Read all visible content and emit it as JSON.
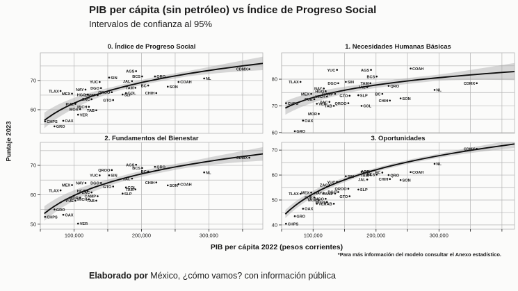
{
  "chart_data": {
    "type": "scatter",
    "title": "PIB per cápita (sin petróleo) vs Índice de Progreso Social",
    "subtitle": "Intervalos de confianza al 95%",
    "xlabel": "PIB per cápita 2022 (pesos corrientes)",
    "ylabel": "Puntaje 2023",
    "footnote": "*Para más información del modelo consultar el Anexo estadístico.",
    "footer_bold": "Elaborado por",
    "footer_rest": " México, ¿cómo vamos? con información pública",
    "grid": true,
    "legend": "none",
    "xticks": [
      100000,
      200000,
      300000
    ],
    "xgrid_step": 50000,
    "colors": {
      "curve": "#0d0d0d",
      "band": "#9a9a9a",
      "gridline": "#b3b3b3",
      "point": "#111111",
      "text": "#1a1a1a"
    },
    "panels": [
      {
        "key": "ips",
        "title": "0. Índice de Progreso Social",
        "ylim": [
          51.9,
          79.5
        ],
        "yticks": [
          70,
          60
        ],
        "ygrid": [
          55,
          60,
          65,
          70,
          75
        ],
        "curve": {
          "x": [
            57000,
            360000
          ],
          "y": [
            56.5,
            75.3
          ]
        },
        "band": {
          "left": 2.8,
          "mid": 0.9,
          "right": 2.3
        }
      },
      {
        "key": "nbh",
        "title": "1. Necesidades Humanas Básicas",
        "ylim": [
          59.7,
          89.9
        ],
        "yticks": [
          80,
          70,
          60
        ],
        "ygrid": [
          60,
          65,
          70,
          75,
          80,
          85
        ],
        "curve": {
          "x": [
            57000,
            360000
          ],
          "y": [
            69.3,
            81.8
          ]
        },
        "band": {
          "left": 2.6,
          "mid": 1.1,
          "right": 3.2
        }
      },
      {
        "key": "fb",
        "title": "2. Fundamentos del Bienestar",
        "ylim": [
          48.3,
          77.8
        ],
        "yticks": [
          70,
          60,
          50
        ],
        "ygrid": [
          50,
          55,
          60,
          65,
          70,
          75
        ],
        "curve": {
          "x": [
            57000,
            360000
          ],
          "y": [
            53.8,
            73.3
          ]
        },
        "band": {
          "left": 2.6,
          "mid": 1.0,
          "right": 2.3
        }
      },
      {
        "key": "op",
        "title": "3. Oportunidades",
        "ylim": [
          38.3,
          73.1
        ],
        "yticks": [
          70,
          60,
          50,
          40
        ],
        "ygrid": [
          40,
          45,
          50,
          55,
          60,
          65,
          70
        ],
        "curve": {
          "x": [
            57000,
            360000
          ],
          "y": [
            44.6,
            70.3
          ]
        },
        "band": {
          "left": 1.7,
          "mid": 0.8,
          "right": 1.6
        }
      }
    ],
    "states": [
      {
        "label": "CHPS",
        "pib": 57000,
        "ips": 56.0,
        "nbh": 71.0,
        "fb": 52.5,
        "op": 40.5,
        "side": "r"
      },
      {
        "label": "GRO",
        "pib": 71000,
        "ips": 54.3,
        "nbh": 60.5,
        "fb": 55.0,
        "op": 43.5,
        "side": "r"
      },
      {
        "label": "OAX",
        "pib": 84000,
        "ips": 56.2,
        "nbh": 64.5,
        "fb": 53.2,
        "op": 46.5,
        "side": "r"
      },
      {
        "label": "TLAX",
        "pib": 80000,
        "ips": 66.4,
        "nbh": 79.0,
        "fb": 61.5,
        "op": 52.5,
        "side": "l"
      },
      {
        "label": "MEX",
        "pib": 97000,
        "ips": 65.5,
        "nbh": 74.5,
        "fb": 63.3,
        "op": 53.0,
        "side": "l"
      },
      {
        "label": "PUE",
        "pib": 102000,
        "ips": 62.0,
        "nbh": 72.5,
        "fb": 58.0,
        "op": 51.0,
        "side": "l"
      },
      {
        "label": "VER",
        "pib": 106000,
        "ips": 58.3,
        "nbh": 70.8,
        "fb": 50.2,
        "op": 48.5,
        "side": "r"
      },
      {
        "label": "MOR",
        "pib": 109000,
        "ips": 60.2,
        "nbh": 67.0,
        "fb": 59.0,
        "op": 50.0,
        "side": "l"
      },
      {
        "label": "NAY",
        "pib": 117000,
        "ips": 66.9,
        "nbh": 76.5,
        "fb": 64.0,
        "op": 52.8,
        "side": "l"
      },
      {
        "label": "HGO",
        "pib": 120000,
        "ips": 65.2,
        "nbh": 75.5,
        "fb": 61.3,
        "op": 50.5,
        "side": "l"
      },
      {
        "label": "MICH",
        "pib": 122000,
        "ips": 61.0,
        "nbh": 73.5,
        "fb": 58.5,
        "op": 49.2,
        "side": "l"
      },
      {
        "label": "ZAC",
        "pib": 126000,
        "ips": 63.6,
        "nbh": 71.5,
        "fb": 60.8,
        "op": 56.0,
        "side": "l"
      },
      {
        "label": "TAB",
        "pib": 133000,
        "ips": 59.8,
        "nbh": 70.0,
        "fb": 58.0,
        "op": 48.5,
        "side": "l"
      },
      {
        "label": "CAMP",
        "pib": 135000,
        "ips": 65.0,
        "nbh": 74.5,
        "fb": 59.5,
        "op": 52.6,
        "side": "l"
      },
      {
        "label": "YUC",
        "pib": 138000,
        "ips": 69.5,
        "nbh": 83.5,
        "fb": 66.6,
        "op": 57.2,
        "side": "l"
      },
      {
        "label": "DGO",
        "pib": 140000,
        "ips": 67.4,
        "nbh": 78.5,
        "fb": 64.0,
        "op": 53.2,
        "side": "l"
      },
      {
        "label": "SIN",
        "pib": 152000,
        "ips": 71.0,
        "nbh": 79.0,
        "fb": 66.6,
        "op": 59.5,
        "side": "r"
      },
      {
        "label": "QROO",
        "pib": 156000,
        "ips": 66.0,
        "nbh": 71.0,
        "fb": 68.4,
        "op": 54.5,
        "side": "l"
      },
      {
        "label": "GTO",
        "pib": 158000,
        "ips": 63.3,
        "nbh": 73.8,
        "fb": 62.8,
        "op": 51.5,
        "side": "l"
      },
      {
        "label": "SLP",
        "pib": 172000,
        "ips": 65.2,
        "nbh": 74.0,
        "fb": 60.4,
        "op": 54.2,
        "side": "r"
      },
      {
        "label": "COL",
        "pib": 177000,
        "ips": 65.7,
        "nbh": 70.0,
        "fb": 62.5,
        "op": 61.3,
        "side": "r"
      },
      {
        "label": "JAL",
        "pib": 186000,
        "ips": 69.8,
        "nbh": 77.0,
        "fb": 65.5,
        "op": 58.2,
        "side": "l"
      },
      {
        "label": "TAM",
        "pib": 191000,
        "ips": 67.5,
        "nbh": 78.5,
        "fb": 61.8,
        "op": 60.0,
        "side": "l"
      },
      {
        "label": "AGS",
        "pib": 192000,
        "ips": 73.2,
        "nbh": 83.5,
        "fb": 70.2,
        "op": 61.5,
        "side": "l"
      },
      {
        "label": "BCS",
        "pib": 201000,
        "ips": 71.4,
        "nbh": 81.0,
        "fb": 69.1,
        "op": 60.2,
        "side": "l"
      },
      {
        "label": "BC",
        "pib": 210000,
        "ips": 68.3,
        "nbh": 74.5,
        "fb": 67.9,
        "op": 61.0,
        "side": "l"
      },
      {
        "label": "QRO",
        "pib": 220000,
        "ips": 71.4,
        "nbh": 77.5,
        "fb": 69.5,
        "op": 60.0,
        "side": "r"
      },
      {
        "label": "CHIH",
        "pib": 222000,
        "ips": 65.7,
        "nbh": 72.0,
        "fb": 64.2,
        "op": 58.4,
        "side": "l"
      },
      {
        "label": "SON",
        "pib": 239000,
        "ips": 67.9,
        "nbh": 72.8,
        "fb": 63.2,
        "op": 58.0,
        "side": "r"
      },
      {
        "label": "COAH",
        "pib": 255000,
        "ips": 69.5,
        "nbh": 84.0,
        "fb": 63.6,
        "op": 61.2,
        "side": "r"
      },
      {
        "label": "NL",
        "pib": 293000,
        "ips": 70.7,
        "nbh": 76.0,
        "fb": 67.6,
        "op": 64.5,
        "side": "r"
      },
      {
        "label": "CDMX",
        "pib": 360000,
        "ips": 73.9,
        "nbh": 78.5,
        "fb": 72.6,
        "op": 70.5,
        "side": "l"
      }
    ]
  }
}
